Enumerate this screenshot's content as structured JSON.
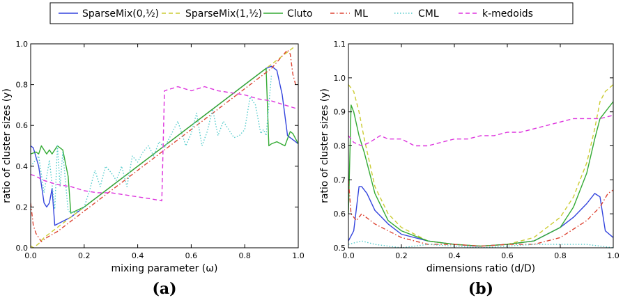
{
  "legend": {
    "entries": [
      {
        "name": "SparseMix(0,½)",
        "color": "#3344dd",
        "dash": "solid"
      },
      {
        "name": "SparseMix(1,½)",
        "color": "#cccc33",
        "dash": "dashed"
      },
      {
        "name": "Cluto",
        "color": "#33aa33",
        "dash": "solid"
      },
      {
        "name": "ML",
        "color": "#dd4433",
        "dash": "dashdot"
      },
      {
        "name": "CML",
        "color": "#55cccc",
        "dash": "dotted"
      },
      {
        "name": "k-medoids",
        "color": "#dd33dd",
        "dash": "dashed"
      }
    ]
  },
  "chart_data": [
    {
      "type": "line",
      "panel_label": "(a)",
      "xlabel": "mixing parameter (ω)",
      "ylabel": "ratio of cluster sizes (y)",
      "xlim": [
        0,
        1
      ],
      "ylim": [
        0,
        1
      ],
      "xticks": [
        0.0,
        0.2,
        0.4,
        0.6,
        0.8,
        1.0
      ],
      "xtick_labels": [
        "0.0",
        "0.2",
        "0.4",
        "0.6",
        "0.8",
        "1.0"
      ],
      "yticks": [
        0.0,
        0.2,
        0.4,
        0.6,
        0.8,
        1.0
      ],
      "ytick_labels": [
        "0.0",
        "0.2",
        "0.4",
        "0.6",
        "0.8",
        "1.0"
      ],
      "grid": false,
      "series": [
        {
          "name": "SparseMix(0,½)",
          "x": [
            0,
            0.01,
            0.03,
            0.05,
            0.06,
            0.07,
            0.08,
            0.09,
            0.15,
            0.2,
            0.3,
            0.4,
            0.5,
            0.6,
            0.7,
            0.8,
            0.88,
            0.9,
            0.92,
            0.94,
            0.96,
            0.98,
            1.0
          ],
          "values": [
            0.5,
            0.49,
            0.4,
            0.22,
            0.2,
            0.22,
            0.29,
            0.11,
            0.15,
            0.2,
            0.3,
            0.4,
            0.5,
            0.6,
            0.7,
            0.8,
            0.88,
            0.89,
            0.87,
            0.75,
            0.55,
            0.53,
            0.51
          ]
        },
        {
          "name": "SparseMix(1,½)",
          "x": [
            0,
            0.01,
            0.03,
            0.05,
            0.1,
            0.2,
            0.3,
            0.4,
            0.5,
            0.6,
            0.7,
            0.8,
            0.9,
            0.95,
            0.97,
            0.99
          ],
          "values": [
            0.01,
            0.0,
            0.02,
            0.05,
            0.1,
            0.2,
            0.3,
            0.4,
            0.5,
            0.6,
            0.7,
            0.8,
            0.9,
            0.95,
            0.97,
            0.99
          ]
        },
        {
          "name": "Cluto",
          "x": [
            0,
            0.02,
            0.03,
            0.04,
            0.05,
            0.06,
            0.07,
            0.08,
            0.1,
            0.12,
            0.14,
            0.15,
            0.2,
            0.3,
            0.4,
            0.5,
            0.6,
            0.7,
            0.8,
            0.88,
            0.89,
            0.9,
            0.92,
            0.95,
            0.97,
            0.98,
            1.0
          ],
          "values": [
            0.46,
            0.47,
            0.46,
            0.5,
            0.48,
            0.46,
            0.48,
            0.46,
            0.5,
            0.48,
            0.35,
            0.17,
            0.2,
            0.3,
            0.4,
            0.5,
            0.6,
            0.7,
            0.8,
            0.88,
            0.5,
            0.51,
            0.52,
            0.5,
            0.57,
            0.56,
            0.51
          ]
        },
        {
          "name": "ML",
          "x": [
            0,
            0.01,
            0.02,
            0.04,
            0.06,
            0.1,
            0.2,
            0.3,
            0.4,
            0.5,
            0.6,
            0.7,
            0.8,
            0.9,
            0.96,
            0.97,
            0.98,
            0.99
          ],
          "values": [
            0.22,
            0.11,
            0.07,
            0.03,
            0.05,
            0.08,
            0.18,
            0.28,
            0.38,
            0.48,
            0.58,
            0.68,
            0.78,
            0.88,
            0.97,
            0.95,
            0.85,
            0.8
          ]
        },
        {
          "name": "CML",
          "x": [
            0,
            0.03,
            0.05,
            0.07,
            0.09,
            0.1,
            0.11,
            0.12,
            0.14,
            0.16,
            0.2,
            0.22,
            0.24,
            0.26,
            0.28,
            0.3,
            0.32,
            0.34,
            0.36,
            0.38,
            0.4,
            0.42,
            0.44,
            0.46,
            0.48,
            0.5,
            0.55,
            0.58,
            0.6,
            0.62,
            0.64,
            0.66,
            0.68,
            0.7,
            0.72,
            0.74,
            0.76,
            0.78,
            0.8,
            0.82,
            0.84,
            0.86,
            0.87,
            0.88,
            0.9
          ],
          "values": [
            0.4,
            0.45,
            0.27,
            0.43,
            0.19,
            0.5,
            0.3,
            0.47,
            0.18,
            0.17,
            0.2,
            0.28,
            0.38,
            0.3,
            0.4,
            0.37,
            0.33,
            0.4,
            0.3,
            0.45,
            0.42,
            0.47,
            0.5,
            0.45,
            0.52,
            0.49,
            0.62,
            0.5,
            0.56,
            0.66,
            0.5,
            0.57,
            0.68,
            0.55,
            0.62,
            0.58,
            0.54,
            0.55,
            0.58,
            0.74,
            0.7,
            0.56,
            0.58,
            0.55,
            0.85
          ]
        },
        {
          "name": "k-medoids",
          "x": [
            0,
            0.02,
            0.05,
            0.1,
            0.15,
            0.2,
            0.25,
            0.3,
            0.35,
            0.4,
            0.45,
            0.49,
            0.5,
            0.55,
            0.6,
            0.65,
            0.7,
            0.75,
            0.8,
            0.85,
            0.9,
            0.95,
            1.0
          ],
          "values": [
            0.36,
            0.35,
            0.33,
            0.31,
            0.3,
            0.28,
            0.27,
            0.27,
            0.26,
            0.25,
            0.24,
            0.23,
            0.77,
            0.79,
            0.77,
            0.79,
            0.77,
            0.76,
            0.75,
            0.73,
            0.72,
            0.7,
            0.68
          ]
        }
      ]
    },
    {
      "type": "line",
      "panel_label": "(b)",
      "xlabel": "dimensions ratio (d/D)",
      "ylabel": "ratio of cluster sizes (y)",
      "xlim": [
        0,
        1
      ],
      "ylim": [
        0.5,
        1.1
      ],
      "xticks": [
        0.0,
        0.2,
        0.4,
        0.6,
        0.8,
        1.0
      ],
      "xtick_labels": [
        "0.0",
        "0.2",
        "0.4",
        "0.6",
        "0.8",
        "1.0"
      ],
      "yticks": [
        0.5,
        0.6,
        0.7,
        0.8,
        0.9,
        1.0,
        1.1
      ],
      "ytick_labels": [
        "0.5",
        "0.6",
        "0.7",
        "0.8",
        "0.9",
        "1.0",
        "1.1"
      ],
      "grid": false,
      "series": [
        {
          "name": "SparseMix(0,½)",
          "x": [
            0,
            0.02,
            0.04,
            0.05,
            0.07,
            0.1,
            0.15,
            0.2,
            0.3,
            0.4,
            0.48,
            0.5,
            0.6,
            0.7,
            0.8,
            0.85,
            0.9,
            0.93,
            0.95,
            0.97,
            1.0
          ],
          "values": [
            0.52,
            0.55,
            0.68,
            0.68,
            0.66,
            0.61,
            0.57,
            0.54,
            0.52,
            0.51,
            0.505,
            0.505,
            0.51,
            0.52,
            0.56,
            0.59,
            0.63,
            0.66,
            0.65,
            0.55,
            0.53
          ]
        },
        {
          "name": "SparseMix(1,½)",
          "x": [
            0,
            0.02,
            0.04,
            0.06,
            0.08,
            0.1,
            0.15,
            0.2,
            0.3,
            0.4,
            0.5,
            0.6,
            0.7,
            0.8,
            0.85,
            0.9,
            0.93,
            0.95,
            0.97,
            1.0
          ],
          "values": [
            0.98,
            0.96,
            0.9,
            0.82,
            0.75,
            0.68,
            0.6,
            0.56,
            0.52,
            0.51,
            0.505,
            0.51,
            0.53,
            0.59,
            0.65,
            0.75,
            0.85,
            0.93,
            0.96,
            0.98
          ]
        },
        {
          "name": "Cluto",
          "x": [
            0,
            0.01,
            0.02,
            0.04,
            0.06,
            0.08,
            0.1,
            0.15,
            0.2,
            0.3,
            0.4,
            0.5,
            0.6,
            0.7,
            0.8,
            0.85,
            0.9,
            0.93,
            0.95,
            0.97,
            1.0
          ],
          "values": [
            0.6,
            0.92,
            0.9,
            0.83,
            0.78,
            0.72,
            0.66,
            0.58,
            0.55,
            0.52,
            0.51,
            0.505,
            0.51,
            0.52,
            0.56,
            0.62,
            0.72,
            0.82,
            0.88,
            0.9,
            0.93
          ]
        },
        {
          "name": "ML",
          "x": [
            0,
            0.01,
            0.03,
            0.05,
            0.1,
            0.2,
            0.3,
            0.4,
            0.5,
            0.6,
            0.7,
            0.8,
            0.9,
            0.95,
            0.98,
            1.0
          ],
          "values": [
            0.7,
            0.6,
            0.58,
            0.6,
            0.57,
            0.53,
            0.51,
            0.51,
            0.505,
            0.51,
            0.51,
            0.53,
            0.58,
            0.62,
            0.66,
            0.67
          ]
        },
        {
          "name": "CML",
          "x": [
            0,
            0.05,
            0.1,
            0.2,
            0.3,
            0.4,
            0.5,
            0.6,
            0.7,
            0.8,
            0.9,
            1.0
          ],
          "values": [
            0.51,
            0.52,
            0.51,
            0.5,
            0.51,
            0.505,
            0.5,
            0.505,
            0.51,
            0.51,
            0.51,
            0.5
          ]
        },
        {
          "name": "k-medoids",
          "x": [
            0,
            0.02,
            0.05,
            0.08,
            0.1,
            0.12,
            0.15,
            0.2,
            0.25,
            0.3,
            0.35,
            0.4,
            0.45,
            0.5,
            0.55,
            0.6,
            0.65,
            0.7,
            0.75,
            0.8,
            0.85,
            0.9,
            0.95,
            1.0
          ],
          "values": [
            0.83,
            0.81,
            0.8,
            0.81,
            0.82,
            0.83,
            0.82,
            0.82,
            0.8,
            0.8,
            0.81,
            0.82,
            0.82,
            0.83,
            0.83,
            0.84,
            0.84,
            0.85,
            0.86,
            0.87,
            0.88,
            0.88,
            0.88,
            0.89
          ]
        }
      ]
    }
  ]
}
